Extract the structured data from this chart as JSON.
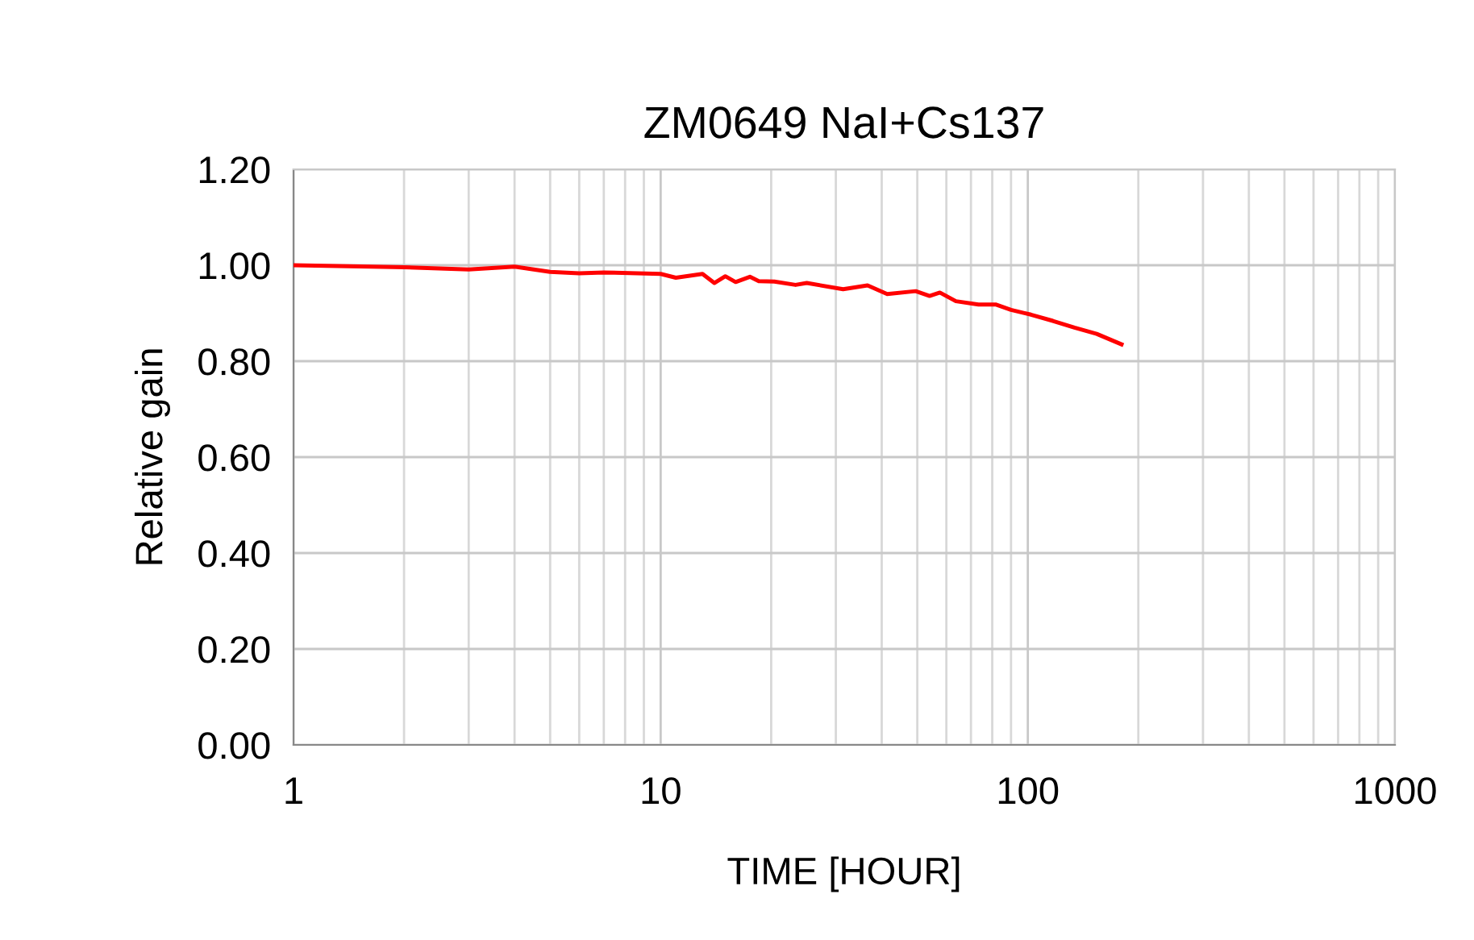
{
  "chart_data": {
    "type": "line",
    "title": "ZM0649 NaI+Cs137",
    "xlabel": "TIME [HOUR]",
    "ylabel": "Relative gain",
    "log": "x",
    "grid": true,
    "marker": "none",
    "line_style": "solid",
    "xlim": [
      1,
      1000
    ],
    "xticks": [
      1,
      10,
      100,
      1000
    ],
    "ylim": [
      0,
      1.2
    ],
    "yticks": [
      {
        "value": 0,
        "label": "0.00"
      },
      {
        "value": 0.2,
        "label": "0.20"
      },
      {
        "value": 0.4,
        "label": "0.40"
      },
      {
        "value": 0.6,
        "label": "0.60"
      },
      {
        "value": 0.8,
        "label": "0.80"
      },
      {
        "value": 1.0,
        "label": "1.00"
      },
      {
        "value": 1.2,
        "label": "1.20"
      }
    ],
    "series": [
      {
        "color": "#ff0000",
        "x": [
          1,
          2,
          3,
          4,
          5,
          6,
          7,
          10,
          11,
          13,
          14,
          15,
          16,
          17.5,
          18.5,
          20.4,
          23.3,
          25,
          31.4,
          36.6,
          41.4,
          49.5,
          54,
          57.6,
          63.7,
          73.4,
          82,
          90,
          102,
          117,
          134,
          154,
          180
        ],
        "values": [
          1.0,
          0.996,
          0.991,
          0.997,
          0.986,
          0.983,
          0.985,
          0.982,
          0.974,
          0.982,
          0.963,
          0.977,
          0.965,
          0.976,
          0.967,
          0.966,
          0.959,
          0.963,
          0.95,
          0.958,
          0.94,
          0.946,
          0.936,
          0.943,
          0.925,
          0.918,
          0.918,
          0.907,
          0.897,
          0.884,
          0.87,
          0.857,
          0.835
        ]
      }
    ]
  }
}
